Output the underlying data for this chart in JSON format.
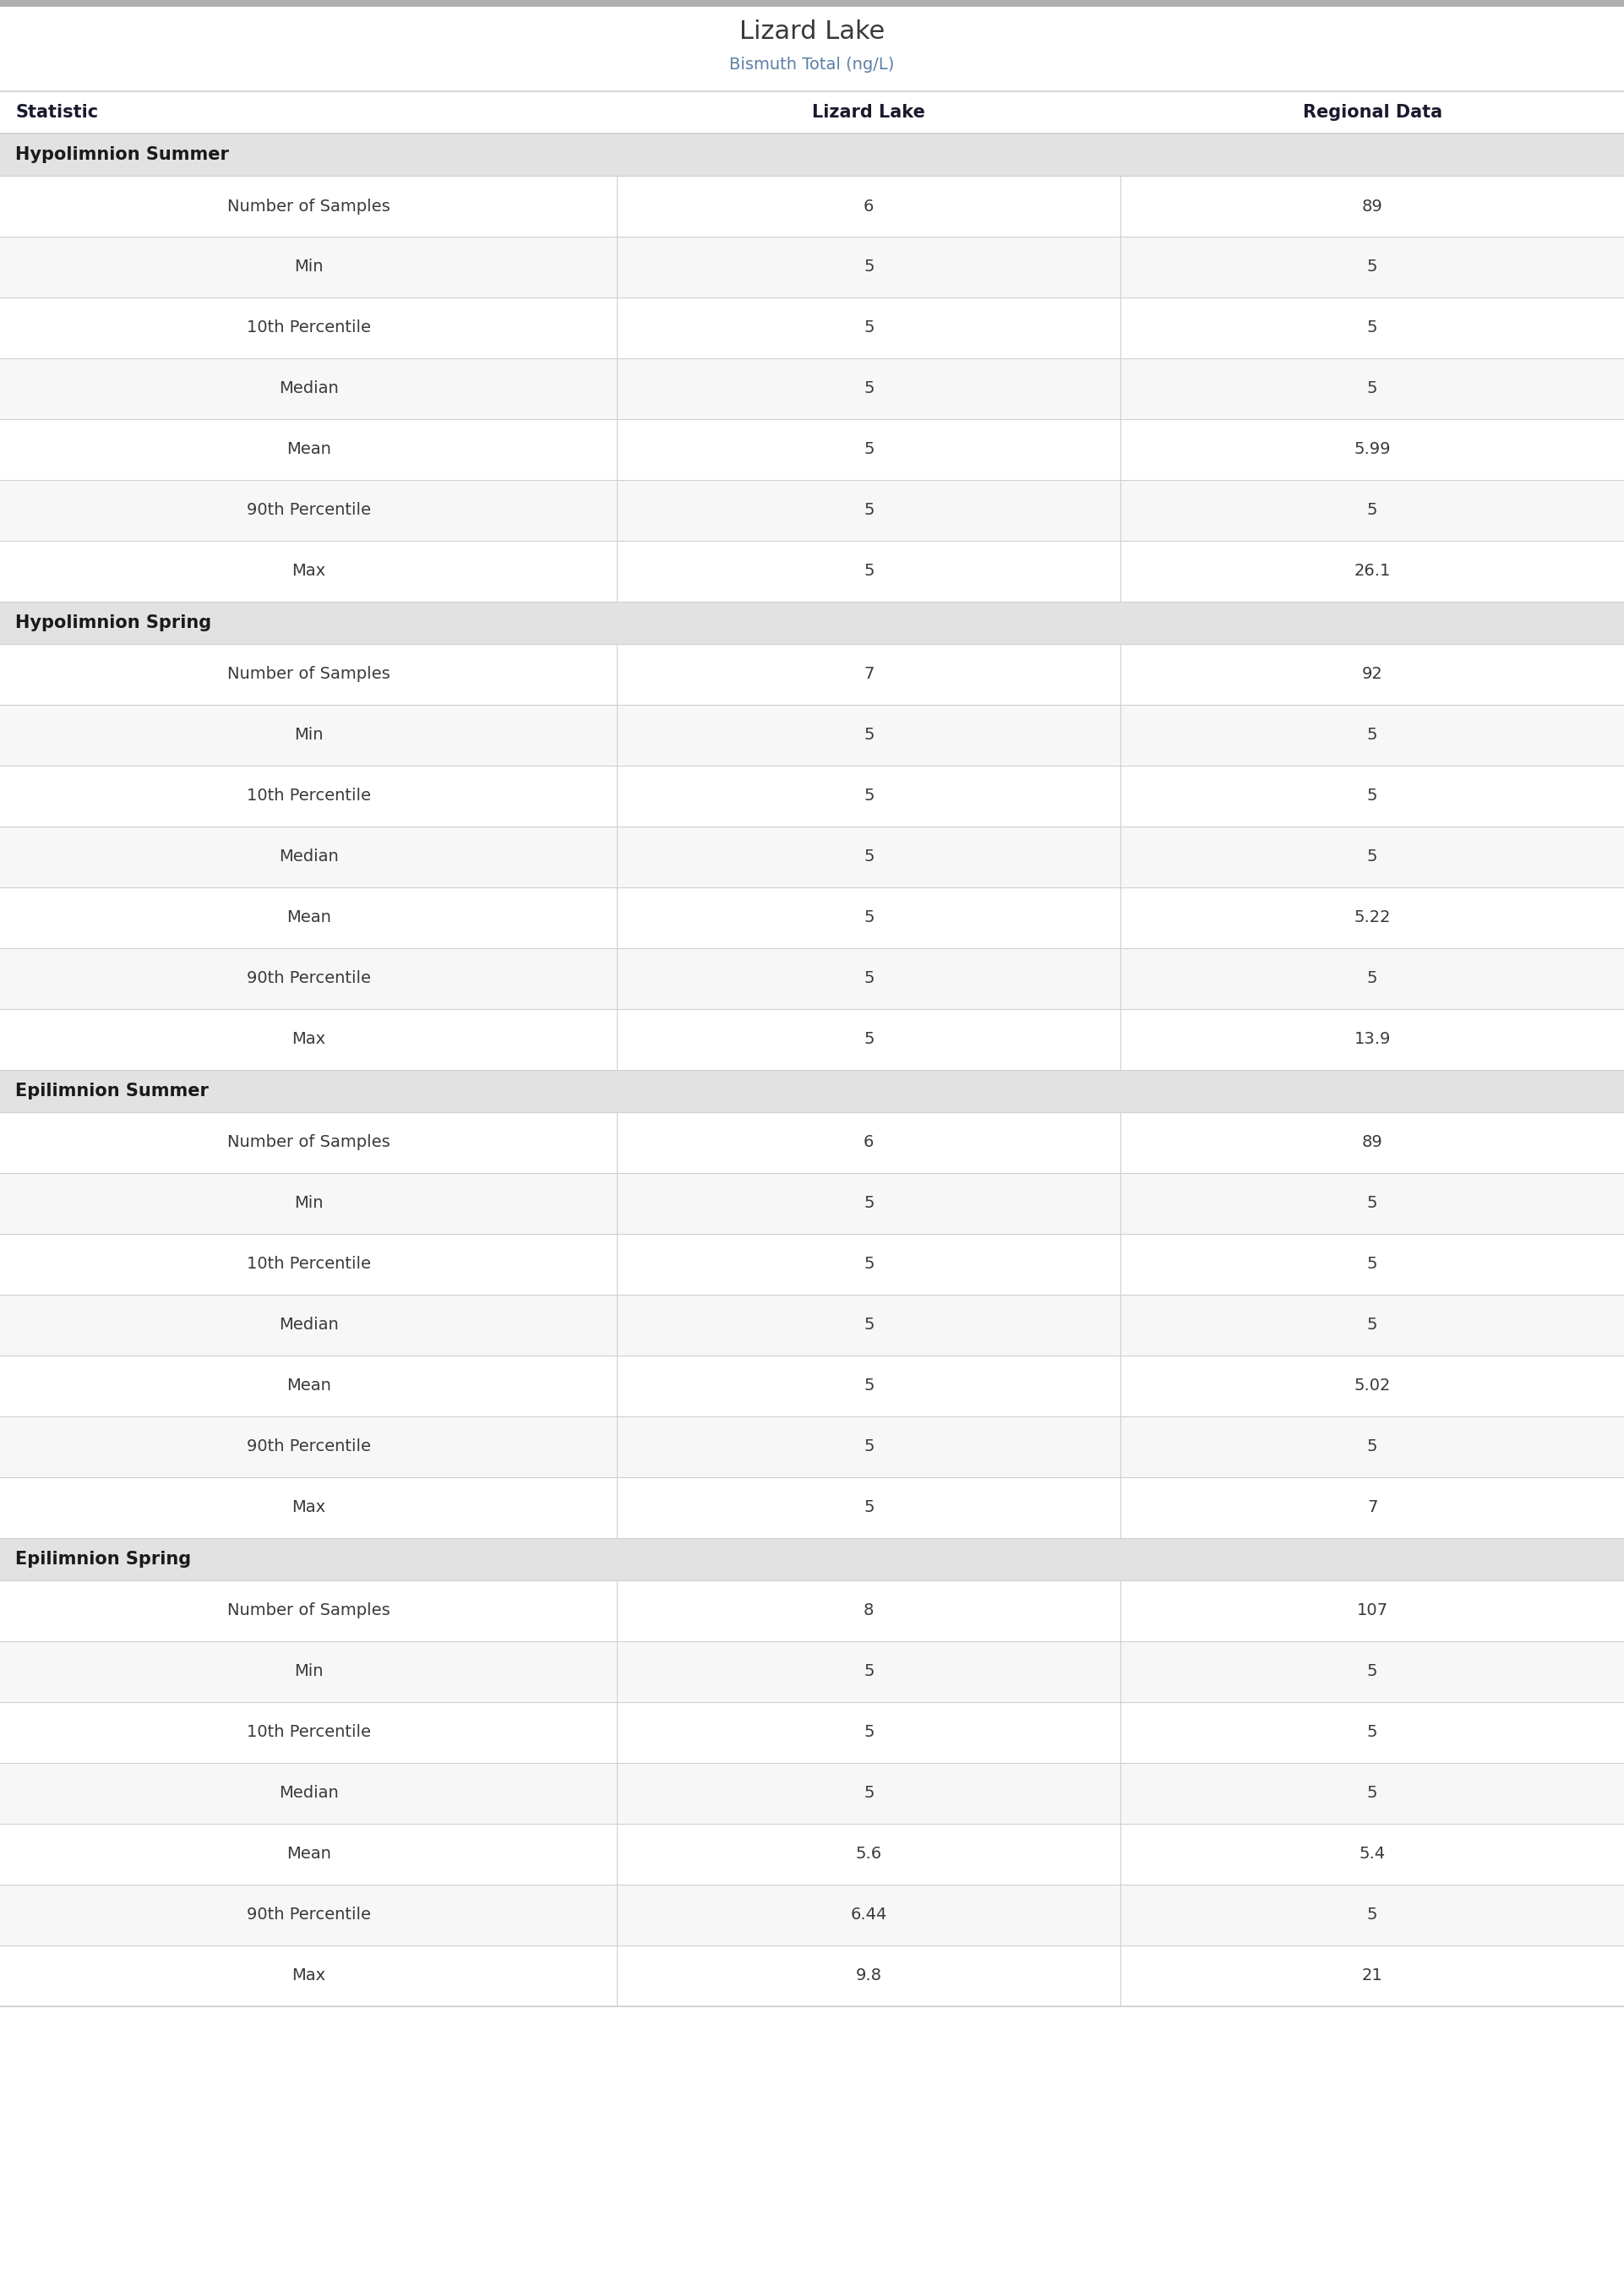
{
  "title": "Lizard Lake",
  "subtitle": "Bismuth Total (ng/L)",
  "col_headers": [
    "Statistic",
    "Lizard Lake",
    "Regional Data"
  ],
  "sections": [
    {
      "name": "Hypolimnion Summer",
      "rows": [
        [
          "Number of Samples",
          "6",
          "89"
        ],
        [
          "Min",
          "5",
          "5"
        ],
        [
          "10th Percentile",
          "5",
          "5"
        ],
        [
          "Median",
          "5",
          "5"
        ],
        [
          "Mean",
          "5",
          "5.99"
        ],
        [
          "90th Percentile",
          "5",
          "5"
        ],
        [
          "Max",
          "5",
          "26.1"
        ]
      ]
    },
    {
      "name": "Hypolimnion Spring",
      "rows": [
        [
          "Number of Samples",
          "7",
          "92"
        ],
        [
          "Min",
          "5",
          "5"
        ],
        [
          "10th Percentile",
          "5",
          "5"
        ],
        [
          "Median",
          "5",
          "5"
        ],
        [
          "Mean",
          "5",
          "5.22"
        ],
        [
          "90th Percentile",
          "5",
          "5"
        ],
        [
          "Max",
          "5",
          "13.9"
        ]
      ]
    },
    {
      "name": "Epilimnion Summer",
      "rows": [
        [
          "Number of Samples",
          "6",
          "89"
        ],
        [
          "Min",
          "5",
          "5"
        ],
        [
          "10th Percentile",
          "5",
          "5"
        ],
        [
          "Median",
          "5",
          "5"
        ],
        [
          "Mean",
          "5",
          "5.02"
        ],
        [
          "90th Percentile",
          "5",
          "5"
        ],
        [
          "Max",
          "5",
          "7"
        ]
      ]
    },
    {
      "name": "Epilimnion Spring",
      "rows": [
        [
          "Number of Samples",
          "8",
          "107"
        ],
        [
          "Min",
          "5",
          "5"
        ],
        [
          "10th Percentile",
          "5",
          "5"
        ],
        [
          "Median",
          "5",
          "5"
        ],
        [
          "Mean",
          "5.6",
          "5.4"
        ],
        [
          "90th Percentile",
          "6.44",
          "5"
        ],
        [
          "Max",
          "9.8",
          "21"
        ]
      ]
    }
  ],
  "title_color": "#3a3a3a",
  "subtitle_color": "#5b7fa6",
  "header_text_color": "#1a1a2e",
  "section_header_bg": "#e2e2e2",
  "section_header_text_color": "#1a1a1a",
  "data_text_color": "#3a3a3a",
  "row_bg_white": "#ffffff",
  "row_bg_light": "#f7f7f7",
  "divider_color": "#d0d0d0",
  "top_bar_color": "#b0b0b0",
  "title_fontsize": 22,
  "subtitle_fontsize": 14,
  "header_fontsize": 15,
  "section_fontsize": 15,
  "data_fontsize": 14
}
